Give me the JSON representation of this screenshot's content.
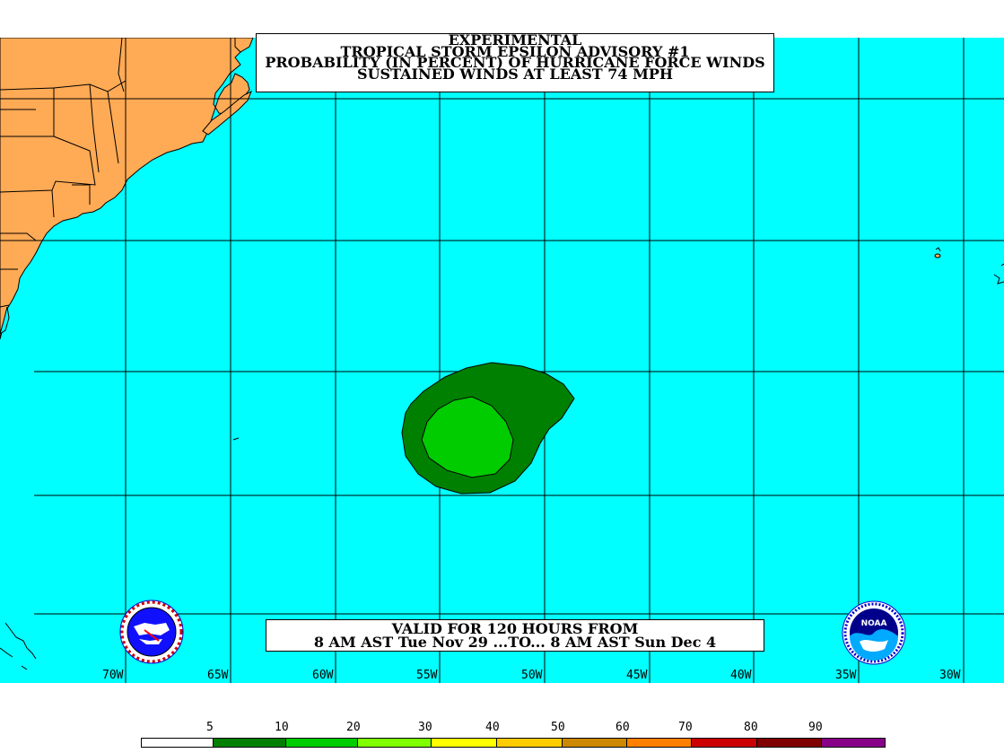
{
  "title": {
    "line1": "EXPERIMENTAL",
    "line2": "TROPICAL STORM EPSILON ADVISORY #1",
    "line3": "PROBABILITY (IN PERCENT) OF HURRICANE FORCE WINDS",
    "line4": "SUSTAINED WINDS AT LEAST 74 MPH"
  },
  "valid": {
    "line1": "VALID FOR 120 HOURS FROM",
    "line2": "8 AM AST Tue Nov 29 ...TO... 8 AM AST Sun Dec 4"
  },
  "longitude_labels": [
    "70W",
    "65W",
    "60W",
    "55W",
    "50W",
    "45W",
    "40W",
    "35W",
    "30W"
  ],
  "legend": {
    "values": [
      "5",
      "10",
      "20",
      "30",
      "40",
      "50",
      "60",
      "70",
      "80",
      "90"
    ],
    "colors": [
      "#ffffff",
      "#007f00",
      "#00cc00",
      "#80ff00",
      "#ffff00",
      "#ffcc00",
      "#cc8800",
      "#ff8000",
      "#cc0000",
      "#800000",
      "#880088"
    ]
  },
  "colors": {
    "ocean": "#00ffff",
    "land": "#ffaa55",
    "prob_5_10": "#008000",
    "prob_10_20": "#00cc00"
  },
  "logos": {
    "left": "nws-logo-icon",
    "right": "noaa-logo-icon",
    "noaa_text": "NOAA"
  }
}
